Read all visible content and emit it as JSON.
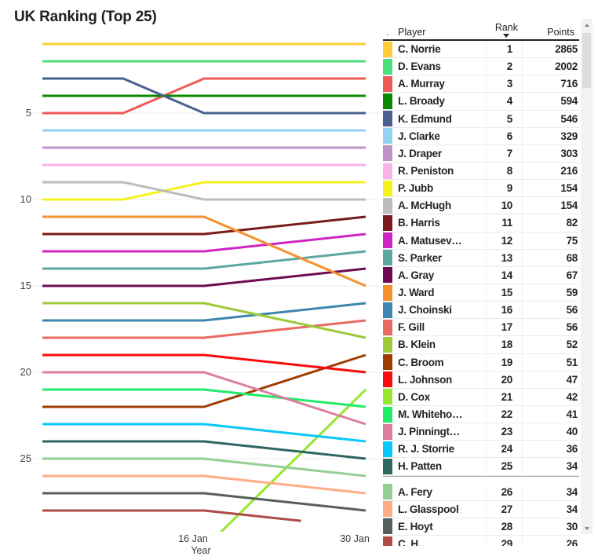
{
  "title": "UK Ranking (Top 25)",
  "chart_data": {
    "type": "line",
    "title": "UK Ranking (Top 25)",
    "xlabel": "Year",
    "ylabel": "Rank",
    "y_inverted": true,
    "y_ticks": [
      5,
      10,
      15,
      20,
      25
    ],
    "x_domain_weeks": [
      0,
      4
    ],
    "x_ticks": [
      {
        "label": "16 Jan",
        "week": 2
      },
      {
        "label": "30 Jan",
        "week": 4
      }
    ],
    "grid": "horizontal-only",
    "legend": "table-right",
    "series": [
      {
        "name": "C. Norrie",
        "color": "#FFCE3A",
        "path": [
          [
            0,
            1
          ],
          [
            4,
            1
          ]
        ]
      },
      {
        "name": "D. Evans",
        "color": "#4BDE7D",
        "path": [
          [
            0,
            2
          ],
          [
            4,
            2
          ]
        ]
      },
      {
        "name": "A. Murray",
        "color": "#EF5A55",
        "path": [
          [
            0,
            5
          ],
          [
            1,
            5
          ],
          [
            2,
            3
          ],
          [
            4,
            3
          ]
        ]
      },
      {
        "name": "L. Broady",
        "color": "#0B8A00",
        "path": [
          [
            0,
            4
          ],
          [
            4,
            4
          ]
        ]
      },
      {
        "name": "K. Edmund",
        "color": "#4A608F",
        "path": [
          [
            0,
            3
          ],
          [
            1,
            3
          ],
          [
            2,
            5
          ],
          [
            4,
            5
          ]
        ]
      },
      {
        "name": "J. Clarke",
        "color": "#92D2F2",
        "path": [
          [
            0,
            6
          ],
          [
            4,
            6
          ]
        ]
      },
      {
        "name": "J. Draper",
        "color": "#BE93C7",
        "path": [
          [
            0,
            7
          ],
          [
            4,
            7
          ]
        ]
      },
      {
        "name": "R. Peniston",
        "color": "#F8B2EA",
        "path": [
          [
            0,
            8
          ],
          [
            4,
            8
          ]
        ]
      },
      {
        "name": "P. Jubb",
        "color": "#F4F222",
        "path": [
          [
            0,
            10
          ],
          [
            1,
            10
          ],
          [
            2,
            9
          ],
          [
            4,
            9
          ]
        ]
      },
      {
        "name": "A. McHugh",
        "color": "#BDBDBD",
        "path": [
          [
            0,
            9
          ],
          [
            1,
            9
          ],
          [
            2,
            10
          ],
          [
            4,
            10
          ]
        ]
      },
      {
        "name": "B. Harris",
        "color": "#7A1B1B",
        "path": [
          [
            0,
            12
          ],
          [
            2,
            12
          ],
          [
            4,
            11
          ]
        ]
      },
      {
        "name": "A. Matusev…",
        "color": "#CF25C3",
        "path": [
          [
            0,
            13
          ],
          [
            2,
            13
          ],
          [
            4,
            12
          ]
        ]
      },
      {
        "name": "S. Parker",
        "color": "#5EA7A1",
        "path": [
          [
            0,
            14
          ],
          [
            2,
            14
          ],
          [
            4,
            13
          ]
        ]
      },
      {
        "name": "A. Gray",
        "color": "#6E0C50",
        "path": [
          [
            0,
            15
          ],
          [
            2,
            15
          ],
          [
            4,
            14
          ]
        ]
      },
      {
        "name": "J. Ward",
        "color": "#F5912F",
        "path": [
          [
            0,
            11
          ],
          [
            2,
            11
          ],
          [
            4,
            15
          ]
        ]
      },
      {
        "name": "J. Choinski",
        "color": "#3E86AE",
        "path": [
          [
            0,
            17
          ],
          [
            2,
            17
          ],
          [
            4,
            16
          ]
        ]
      },
      {
        "name": "F. Gill",
        "color": "#E96A62",
        "path": [
          [
            0,
            18
          ],
          [
            2,
            18
          ],
          [
            4,
            17
          ]
        ]
      },
      {
        "name": "B. Klein",
        "color": "#9EC93B",
        "path": [
          [
            0,
            16
          ],
          [
            2,
            16
          ],
          [
            4,
            18
          ]
        ]
      },
      {
        "name": "C. Broom",
        "color": "#A03B00",
        "path": [
          [
            0,
            22
          ],
          [
            2,
            22
          ],
          [
            4,
            19
          ]
        ]
      },
      {
        "name": "L. Johnson",
        "color": "#FA0A0A",
        "path": [
          [
            0,
            19
          ],
          [
            2,
            19
          ],
          [
            4,
            20
          ]
        ]
      },
      {
        "name": "D. Cox",
        "color": "#94E72E",
        "path": [
          [
            2,
            30.2
          ],
          [
            4,
            21
          ]
        ]
      },
      {
        "name": "M. Whiteho…",
        "color": "#22EB67",
        "path": [
          [
            0,
            21
          ],
          [
            2,
            21
          ],
          [
            4,
            22
          ]
        ]
      },
      {
        "name": "J. Pinningt…",
        "color": "#DB7EA1",
        "path": [
          [
            0,
            20
          ],
          [
            2,
            20
          ],
          [
            4,
            23
          ]
        ]
      },
      {
        "name": "R. J. Storrie",
        "color": "#09C7F9",
        "path": [
          [
            0,
            23
          ],
          [
            2,
            23
          ],
          [
            4,
            24
          ]
        ]
      },
      {
        "name": "H. Patten",
        "color": "#2F6660",
        "path": [
          [
            0,
            24
          ],
          [
            2,
            24
          ],
          [
            4,
            25
          ]
        ]
      },
      {
        "name": "A. Fery",
        "color": "#95CE93",
        "path": [
          [
            0,
            25
          ],
          [
            2,
            25
          ],
          [
            4,
            26
          ]
        ]
      },
      {
        "name": "L. Glasspool",
        "color": "#FFAD85",
        "path": [
          [
            0,
            26
          ],
          [
            2,
            26
          ],
          [
            4,
            27
          ]
        ]
      },
      {
        "name": "E. Hoyt",
        "color": "#565F5C",
        "path": [
          [
            0,
            27
          ],
          [
            2,
            27
          ],
          [
            4,
            28
          ]
        ]
      },
      {
        "name": "C. H…",
        "color": "#AE4A48",
        "path": [
          [
            0,
            28
          ],
          [
            2,
            28
          ],
          [
            3.2,
            28.6
          ]
        ]
      }
    ]
  },
  "table": {
    "col_dot": ".",
    "columns": {
      "player": "Player",
      "rank": "Rank",
      "points": "Points"
    },
    "sorted_by": "Rank",
    "divider_after_rank": "25",
    "rows": [
      {
        "player": "C. Norrie",
        "rank": "1",
        "points": "2865",
        "color": "#FFCE3A"
      },
      {
        "player": "D. Evans",
        "rank": "2",
        "points": "2002",
        "color": "#4BDE7D"
      },
      {
        "player": "A. Murray",
        "rank": "3",
        "points": "716",
        "color": "#EF5A55"
      },
      {
        "player": "L. Broady",
        "rank": "4",
        "points": "594",
        "color": "#0B8A00"
      },
      {
        "player": "K. Edmund",
        "rank": "5",
        "points": "546",
        "color": "#4A608F"
      },
      {
        "player": "J. Clarke",
        "rank": "6",
        "points": "329",
        "color": "#92D2F2"
      },
      {
        "player": "J. Draper",
        "rank": "7",
        "points": "303",
        "color": "#BE93C7"
      },
      {
        "player": "R. Peniston",
        "rank": "8",
        "points": "216",
        "color": "#F8B2EA"
      },
      {
        "player": "P. Jubb",
        "rank": "9",
        "points": "154",
        "color": "#F4F222"
      },
      {
        "player": "A. McHugh",
        "rank": "10",
        "points": "154",
        "color": "#BDBDBD"
      },
      {
        "player": "B. Harris",
        "rank": "11",
        "points": "82",
        "color": "#7A1B1B"
      },
      {
        "player": "A. Matusev…",
        "rank": "12",
        "points": "75",
        "color": "#CF25C3"
      },
      {
        "player": "S. Parker",
        "rank": "13",
        "points": "68",
        "color": "#5EA7A1"
      },
      {
        "player": "A. Gray",
        "rank": "14",
        "points": "67",
        "color": "#6E0C50"
      },
      {
        "player": "J. Ward",
        "rank": "15",
        "points": "59",
        "color": "#F5912F"
      },
      {
        "player": "J. Choinski",
        "rank": "16",
        "points": "56",
        "color": "#3E86AE"
      },
      {
        "player": "F. Gill",
        "rank": "17",
        "points": "56",
        "color": "#E96A62"
      },
      {
        "player": "B. Klein",
        "rank": "18",
        "points": "52",
        "color": "#9EC93B"
      },
      {
        "player": "C. Broom",
        "rank": "19",
        "points": "51",
        "color": "#A03B00"
      },
      {
        "player": "L. Johnson",
        "rank": "20",
        "points": "47",
        "color": "#FA0A0A"
      },
      {
        "player": "D. Cox",
        "rank": "21",
        "points": "42",
        "color": "#94E72E"
      },
      {
        "player": "M. Whiteho…",
        "rank": "22",
        "points": "41",
        "color": "#22EB67"
      },
      {
        "player": "J. Pinningt…",
        "rank": "23",
        "points": "40",
        "color": "#DB7EA1"
      },
      {
        "player": "R. J. Storrie",
        "rank": "24",
        "points": "36",
        "color": "#09C7F9"
      },
      {
        "player": "H. Patten",
        "rank": "25",
        "points": "34",
        "color": "#2F6660"
      },
      {
        "player": "A. Fery",
        "rank": "26",
        "points": "34",
        "color": "#95CE93"
      },
      {
        "player": "L. Glasspool",
        "rank": "27",
        "points": "34",
        "color": "#FFAD85"
      },
      {
        "player": "E. Hoyt",
        "rank": "28",
        "points": "30",
        "color": "#565F5C"
      },
      {
        "player": "C. H…",
        "rank": "29",
        "points": "26",
        "color": "#AE4A48"
      }
    ]
  }
}
